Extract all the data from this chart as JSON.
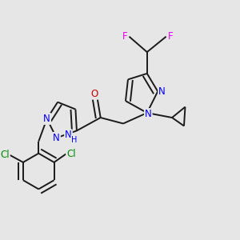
{
  "background_color": "#e6e6e6",
  "bond_color": "#1a1a1a",
  "bond_width": 1.4,
  "atom_colors": {
    "N": "#0000ee",
    "O": "#cc0000",
    "Cl": "#008800",
    "F": "#ee00ee",
    "C": "#1a1a1a",
    "H": "#1a1a1a"
  },
  "font_size_atom": 8.5
}
